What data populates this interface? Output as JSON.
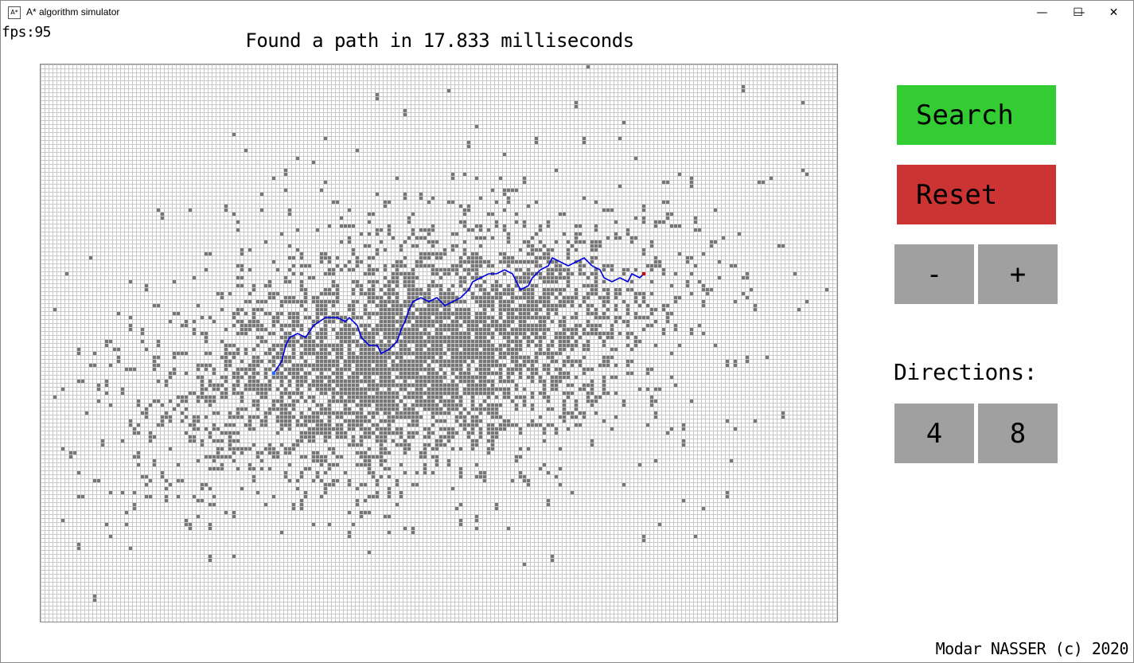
{
  "window": {
    "title": "A* algorithm simulator",
    "icon": "app-icon",
    "controls": {
      "minimize": "—",
      "maximize": "☐",
      "close": "✕"
    }
  },
  "fps_label": "fps:95",
  "status": "Found a path in 17.833 milliseconds",
  "controls": {
    "search_label": "Search",
    "reset_label": "Reset",
    "minus_label": "-",
    "plus_label": "+",
    "directions_label": "Directions:",
    "dir4_label": "4",
    "dir8_label": "8"
  },
  "footer": "Modar NASSER (c) 2020",
  "colors": {
    "search": "#33cc33",
    "reset": "#cc3333",
    "neutral_button": "#a0a0a0",
    "wall": "#767676",
    "path": "#0000dd",
    "goal": "#dd0000",
    "grid_line": "#c8c8c8"
  }
}
